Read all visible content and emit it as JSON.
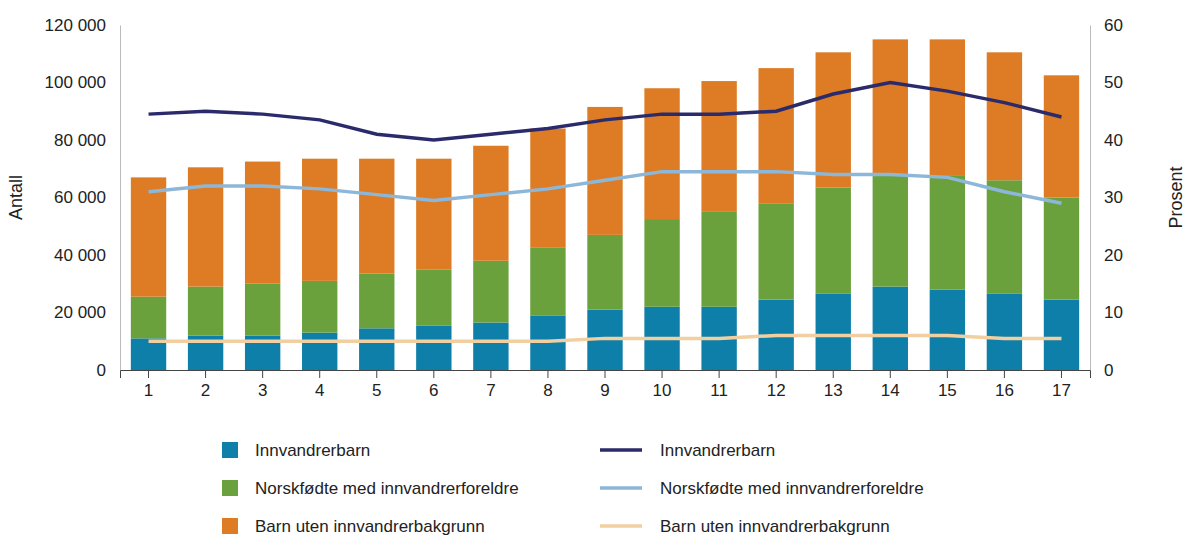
{
  "chart_data": {
    "type": "bar",
    "stacked": true,
    "grid": false,
    "legend": "bottom",
    "y_label": "Antall",
    "y2_label": "Prosent",
    "categories": [
      "1",
      "2",
      "3",
      "4",
      "5",
      "6",
      "7",
      "8",
      "9",
      "10",
      "11",
      "12",
      "13",
      "14",
      "15",
      "16",
      "17"
    ],
    "ylim": [
      0,
      120000
    ],
    "yticks": [
      0,
      {
        "value": 20000,
        "label": "20 000"
      },
      {
        "value": 40000,
        "label": "40 000"
      },
      {
        "value": 60000,
        "label": "60 000"
      },
      {
        "value": 80000,
        "label": "80 000"
      },
      {
        "value": 100000,
        "label": "100 000"
      },
      {
        "value": 120000,
        "label": "120 000"
      }
    ],
    "y2lim": [
      0,
      60
    ],
    "y2ticks": [
      0,
      10,
      20,
      30,
      40,
      50,
      60
    ],
    "series": [
      {
        "name": "Innvandrerbarn",
        "type": "bar",
        "color": "#0e7fa8",
        "values": [
          11000,
          12000,
          12000,
          13000,
          14500,
          15500,
          16500,
          19000,
          21000,
          22000,
          22000,
          24500,
          26500,
          29000,
          28000,
          26500,
          24500
        ]
      },
      {
        "name": "Norskfødte med innvandrerforeldre",
        "type": "bar",
        "color": "#6aa13d",
        "values": [
          14500,
          17000,
          18000,
          18000,
          19000,
          19500,
          21500,
          23500,
          26000,
          30500,
          33000,
          33500,
          37000,
          38500,
          39500,
          39500,
          35500
        ]
      },
      {
        "name": "Barn uten innvandrerbakgrunn",
        "type": "bar",
        "color": "#dd7c25",
        "values": [
          41500,
          41500,
          42500,
          42500,
          40000,
          38500,
          40000,
          41500,
          44500,
          45500,
          45500,
          47000,
          47000,
          47500,
          47500,
          44500,
          42500
        ]
      },
      {
        "name": "Innvandrerbarn",
        "type": "line",
        "axis": "y2",
        "color": "#2b2b6b",
        "values": [
          44.5,
          45,
          44.5,
          43.5,
          41,
          40,
          41,
          42,
          43.5,
          44.5,
          44.5,
          45,
          48,
          50,
          48.5,
          46.5,
          44
        ]
      },
      {
        "name": "Norskfødte med innvandrerforeldre",
        "type": "line",
        "axis": "y2",
        "color": "#8db7d9",
        "values": [
          31,
          32,
          32,
          31.5,
          30.5,
          29.5,
          30.5,
          31.5,
          33,
          34.5,
          34.5,
          34.5,
          34,
          34,
          33.5,
          31,
          29
        ]
      },
      {
        "name": "Barn uten innvandrerbakgrunn",
        "type": "line",
        "axis": "y2",
        "color": "#f2cfa0",
        "values": [
          5,
          5,
          5,
          5,
          5,
          5,
          5,
          5,
          5.5,
          5.5,
          5.5,
          6,
          6,
          6,
          6,
          5.5,
          5.5
        ]
      }
    ]
  }
}
